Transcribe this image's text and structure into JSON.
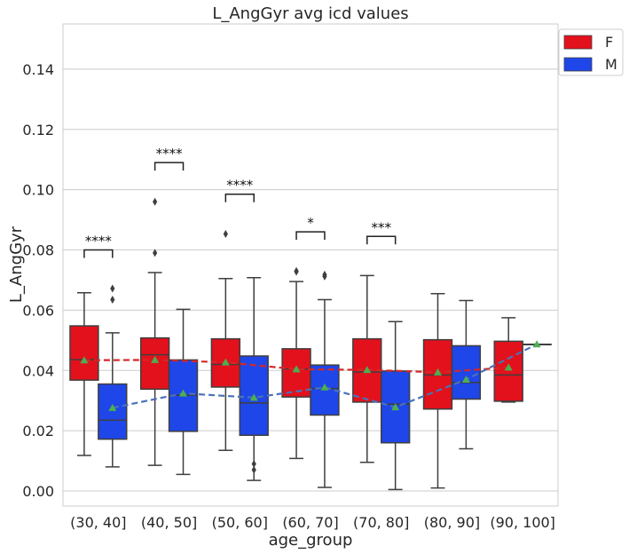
{
  "chart_data": {
    "type": "box",
    "title": "L_AngGyr avg icd values",
    "xlabel": "age_group",
    "ylabel": "L_AngGyr",
    "ylim": [
      -0.005,
      0.155
    ],
    "yticks": [
      "0.00",
      "0.02",
      "0.04",
      "0.06",
      "0.08",
      "0.10",
      "0.12",
      "0.14"
    ],
    "ytick_values": [
      0.0,
      0.02,
      0.04,
      0.06,
      0.08,
      0.1,
      0.12,
      0.14
    ],
    "grid": true,
    "legend_position": "top-right",
    "categories": [
      "(30, 40]",
      "(40, 50]",
      "(50, 60]",
      "(60, 70]",
      "(70, 80]",
      "(80, 90]",
      "(90, 100]"
    ],
    "series": [
      {
        "name": "F",
        "color": "#e3111c",
        "mean_line_color": "#d62728",
        "boxes": [
          {
            "whislo": 0.0118,
            "q1": 0.0368,
            "med": 0.0436,
            "q3": 0.0548,
            "whishi": 0.0658,
            "mean": 0.0434,
            "fliers": []
          },
          {
            "whislo": 0.0085,
            "q1": 0.0338,
            "med": 0.0452,
            "q3": 0.0508,
            "whishi": 0.0725,
            "mean": 0.0435,
            "fliers": [
              0.096,
              0.079
            ]
          },
          {
            "whislo": 0.0135,
            "q1": 0.0345,
            "med": 0.042,
            "q3": 0.0505,
            "whishi": 0.0705,
            "mean": 0.0427,
            "fliers": [
              0.0853
            ]
          },
          {
            "whislo": 0.0108,
            "q1": 0.0312,
            "med": 0.0405,
            "q3": 0.0472,
            "whishi": 0.0695,
            "mean": 0.0404,
            "fliers": [
              0.073,
              0.0728
            ]
          },
          {
            "whislo": 0.0095,
            "q1": 0.0295,
            "med": 0.0395,
            "q3": 0.0505,
            "whishi": 0.0715,
            "mean": 0.0402,
            "fliers": []
          },
          {
            "whislo": 0.001,
            "q1": 0.0272,
            "med": 0.0385,
            "q3": 0.0502,
            "whishi": 0.0655,
            "mean": 0.0394,
            "fliers": []
          },
          {
            "whislo": 0.0295,
            "q1": 0.0298,
            "med": 0.0385,
            "q3": 0.0497,
            "whishi": 0.0575,
            "mean": 0.041,
            "fliers": []
          }
        ]
      },
      {
        "name": "M",
        "color": "#1f46e8",
        "mean_line_color": "#4a72b8",
        "boxes": [
          {
            "whislo": 0.008,
            "q1": 0.0172,
            "med": 0.0235,
            "q3": 0.0355,
            "whishi": 0.0525,
            "mean": 0.0276,
            "fliers": [
              0.0672,
              0.0635
            ]
          },
          {
            "whislo": 0.0055,
            "q1": 0.0198,
            "med": 0.0318,
            "q3": 0.0435,
            "whishi": 0.0603,
            "mean": 0.0324,
            "fliers": []
          },
          {
            "whislo": 0.0035,
            "q1": 0.0185,
            "med": 0.0292,
            "q3": 0.0448,
            "whishi": 0.0708,
            "mean": 0.031,
            "fliers": [
              0.009,
              0.007
            ]
          },
          {
            "whislo": 0.0012,
            "q1": 0.0252,
            "med": 0.034,
            "q3": 0.0418,
            "whishi": 0.0635,
            "mean": 0.0344,
            "fliers": [
              0.0718,
              0.0712
            ]
          },
          {
            "whislo": 0.0005,
            "q1": 0.016,
            "med": 0.0288,
            "q3": 0.0398,
            "whishi": 0.0562,
            "mean": 0.0278,
            "fliers": []
          },
          {
            "whislo": 0.014,
            "q1": 0.0305,
            "med": 0.036,
            "q3": 0.0482,
            "whishi": 0.0632,
            "mean": 0.037,
            "fliers": []
          },
          {
            "whislo": 0.0487,
            "q1": 0.0487,
            "med": 0.0487,
            "q3": 0.0487,
            "whishi": 0.0487,
            "mean": 0.0487,
            "fliers": []
          }
        ]
      }
    ],
    "significance": [
      {
        "category_index": 0,
        "label": "****",
        "y": 0.08
      },
      {
        "category_index": 1,
        "label": "****",
        "y": 0.109
      },
      {
        "category_index": 2,
        "label": "****",
        "y": 0.0985
      },
      {
        "category_index": 3,
        "label": "*",
        "y": 0.086
      },
      {
        "category_index": 4,
        "label": "***",
        "y": 0.0845
      }
    ],
    "mean_marker_color": "#4caf50",
    "legend": [
      {
        "label": "F",
        "color": "#e3111c"
      },
      {
        "label": "M",
        "color": "#1f46e8"
      }
    ]
  }
}
